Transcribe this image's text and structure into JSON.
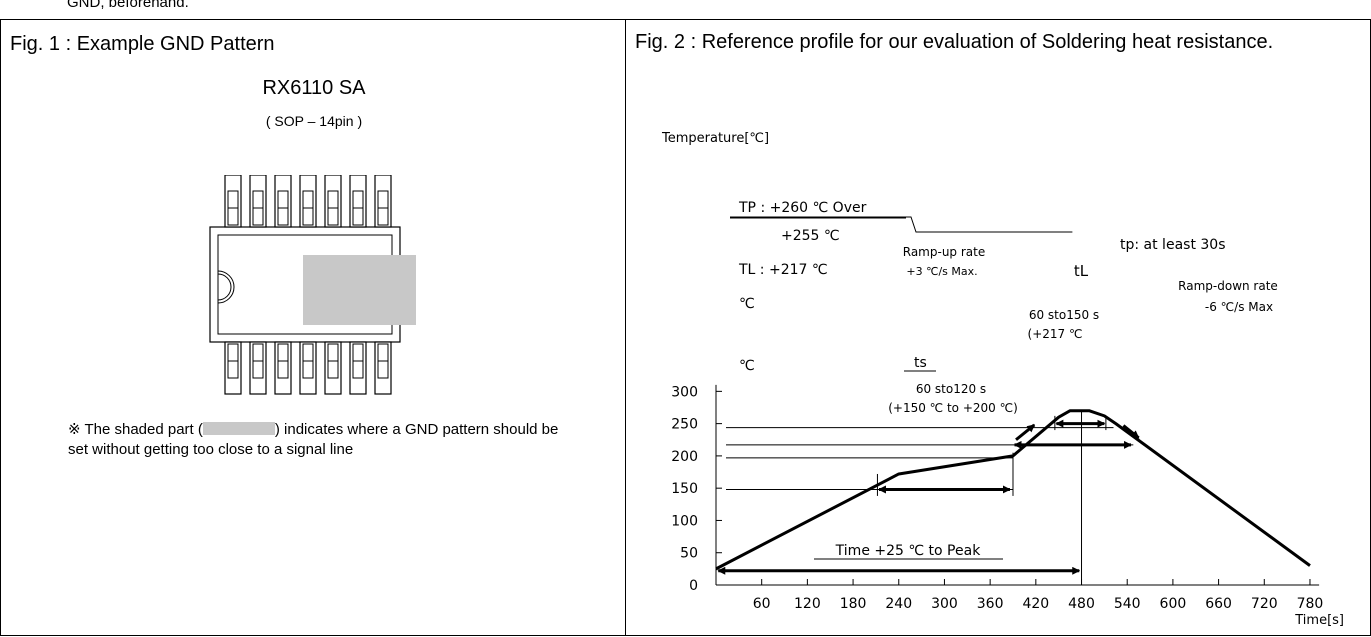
{
  "page": {
    "cutoff_text": "GND, beforehand."
  },
  "fig1": {
    "title": "Fig. 1 : Example GND Pattern",
    "part_name": "RX6110 SA",
    "package": "( SOP – 14pin )",
    "note_prefix": "※ The shaded part (",
    "note_suffix": ") indicates where a GND pattern should be set without getting too close to a signal line",
    "colors": {
      "gnd_shading": "#c8c8c8"
    }
  },
  "fig2": {
    "title": "Fig. 2 : Reference profile for our evaluation of Soldering heat resistance."
  },
  "chart_data": {
    "type": "line",
    "ylabel": "Temperature[℃]",
    "xlabel": "Time[s]",
    "xlim": [
      0,
      780
    ],
    "ylim": [
      0,
      300
    ],
    "x_ticks": [
      60,
      120,
      180,
      240,
      300,
      360,
      420,
      480,
      540,
      600,
      660,
      720,
      780
    ],
    "y_ticks": [
      0,
      50,
      100,
      150,
      200,
      250,
      300
    ],
    "series": [
      {
        "x": [
          0,
          240,
          390,
          450,
          465,
          490,
          510,
          525,
          780
        ],
        "y": [
          25,
          172,
          200,
          260,
          270,
          270,
          262,
          250,
          30
        ]
      }
    ],
    "annotations": {
      "tp_label": "TP  : +260 ℃  Over",
      "t255_label": "+255 ℃",
      "tl_label": "TL   : +217 ℃",
      "ts_max_label": "℃",
      "ts_min_label": "℃",
      "ramp_up_line1": "Ramp-up rate",
      "ramp_up_line2": "+3 ℃/s Max.",
      "ramp_down_line1": "Ramp-down rate",
      "ramp_down_line2": "-6 ℃/s Max",
      "tp_time": "tp: at least 30s",
      "tl_name": "tL",
      "tl_time_line1": "60 sto150 s",
      "tl_time_line2": "(+217 ℃",
      "ts_name": "ts",
      "ts_time_line1": "60 sto120 s",
      "ts_time_line2": "(+150 ℃ to +200 ℃)",
      "time_to_peak": "Time +25 ℃ to Peak"
    }
  }
}
